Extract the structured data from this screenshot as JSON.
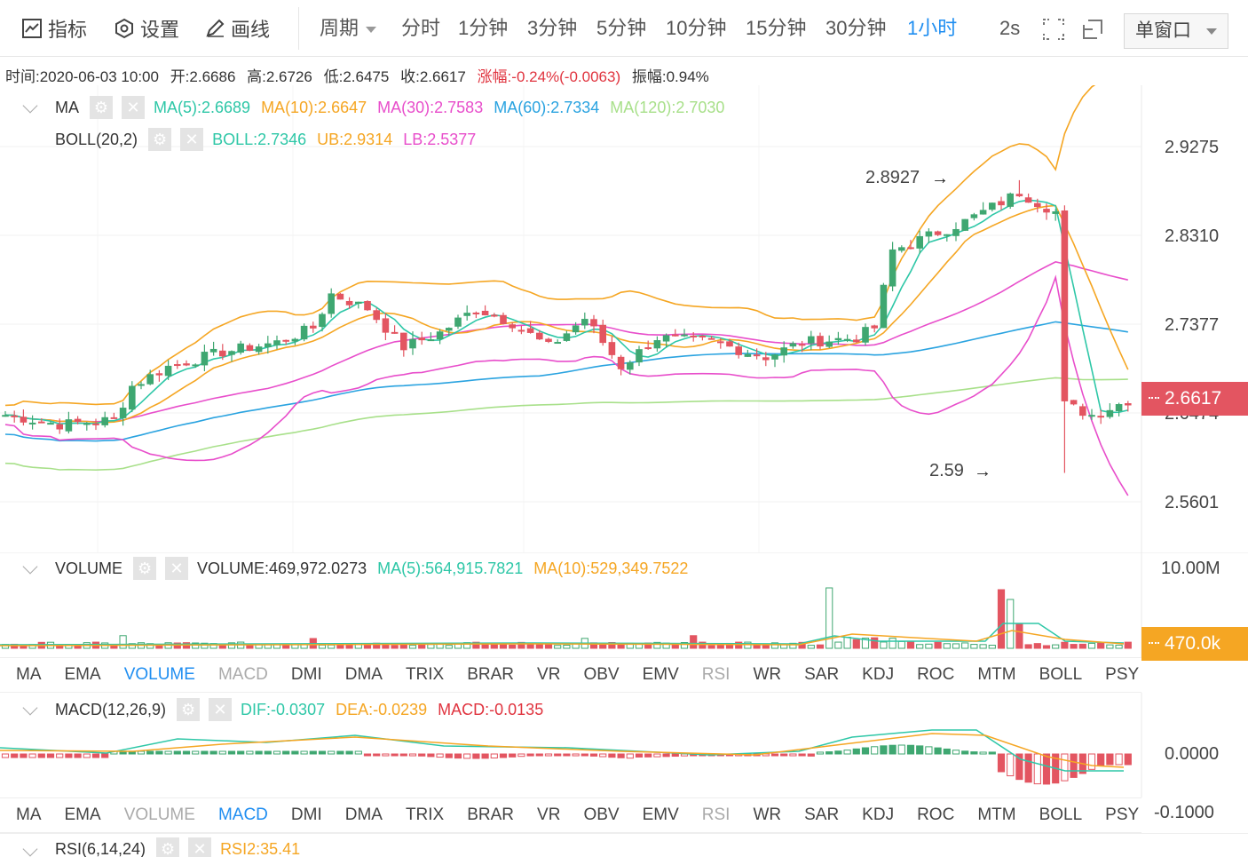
{
  "toolbar": {
    "indicator_label": "指标",
    "settings_label": "设置",
    "draw_label": "画线",
    "period_label": "周期",
    "periods": [
      "分时",
      "1分钟",
      "3分钟",
      "5分钟",
      "10分钟",
      "15分钟",
      "30分钟",
      "1小时"
    ],
    "active_period": "1小时",
    "refresh": "2s",
    "window_mode": "单窗口"
  },
  "info": {
    "time": "时间:2020-06-03 10:00",
    "open": "开:2.6686",
    "high": "高:2.6726",
    "low": "低:2.6475",
    "close": "收:2.6617",
    "change": "涨幅:-0.24%(-0.0063)",
    "amplitude": "振幅:0.94%"
  },
  "legends": {
    "ma": {
      "name": "MA",
      "items": [
        {
          "text": "MA(5):2.6689",
          "color": "#2ec7a7"
        },
        {
          "text": "MA(10):2.6647",
          "color": "#f5a623"
        },
        {
          "text": "MA(30):2.7583",
          "color": "#e84ecb"
        },
        {
          "text": "MA(60):2.7334",
          "color": "#2aa3e0"
        },
        {
          "text": "MA(120):2.7030",
          "color": "#a8e08a"
        }
      ]
    },
    "boll": {
      "name": "BOLL(20,2)",
      "items": [
        {
          "text": "BOLL:2.7346",
          "color": "#2ec7a7"
        },
        {
          "text": "UB:2.9314",
          "color": "#f5a623"
        },
        {
          "text": "LB:2.5377",
          "color": "#e84ecb"
        }
      ]
    },
    "volume": {
      "name": "VOLUME",
      "items": [
        {
          "text": "VOLUME:469,972.0273",
          "color": "#333333"
        },
        {
          "text": "MA(5):564,915.7821",
          "color": "#2ec7a7"
        },
        {
          "text": "MA(10):529,349.7522",
          "color": "#f5a623"
        }
      ]
    },
    "macd": {
      "name": "MACD(12,26,9)",
      "items": [
        {
          "text": "DIF:-0.0307",
          "color": "#2ec7a7"
        },
        {
          "text": "DEA:-0.0239",
          "color": "#f5a623"
        },
        {
          "text": "MACD:-0.0135",
          "color": "#e0343f"
        }
      ]
    },
    "rsi": {
      "name": "RSI(6,14,24)",
      "items": [
        {
          "text": "RSI2:35.41",
          "color": "#f5a623"
        }
      ]
    }
  },
  "price_axis": [
    "2.9275",
    "2.8310",
    "2.7377",
    "2.6474",
    "2.5601"
  ],
  "current_price": "2.6617",
  "annotations": {
    "high": "2.8927",
    "low": "2.59"
  },
  "volume_axis": [
    "10.00M"
  ],
  "current_volume": "470.0k",
  "macd_axis": [
    "0.0000",
    "-0.1000"
  ],
  "indicator_tabs": [
    "MA",
    "EMA",
    "VOLUME",
    "MACD",
    "DMI",
    "DMA",
    "TRIX",
    "BRAR",
    "VR",
    "OBV",
    "EMV",
    "RSI",
    "WR",
    "SAR",
    "KDJ",
    "ROC",
    "MTM",
    "BOLL",
    "PSY"
  ],
  "tabs_row1_active": "VOLUME",
  "tabs_row2_active": "MACD",
  "tabs_dim": [
    "MACD",
    "RSI"
  ],
  "tabs_row2_dim": [
    "VOLUME",
    "RSI"
  ],
  "colors": {
    "up": "#3fa771",
    "down": "#e35561",
    "accent": "#1f8ef1"
  }
}
